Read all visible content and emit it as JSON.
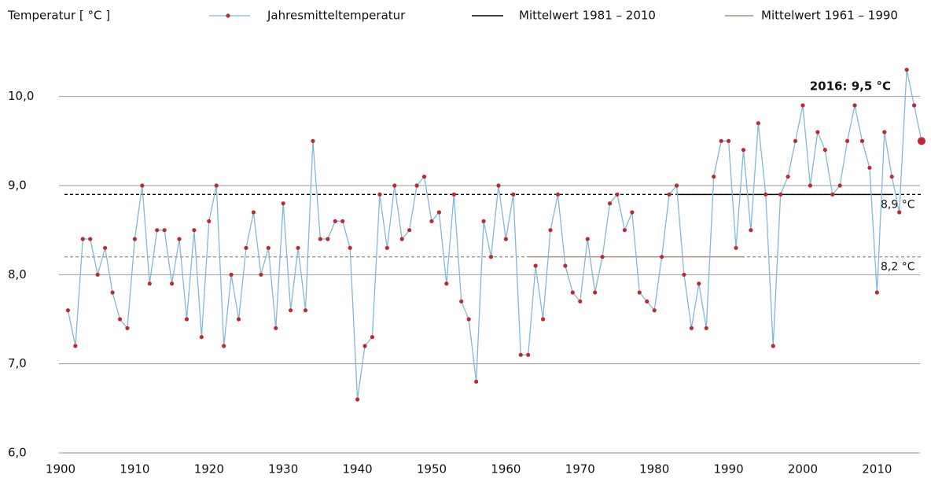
{
  "chart_data": {
    "type": "line",
    "ylabel": "Temperatur [ °C ]",
    "x": [
      1901,
      1902,
      1903,
      1904,
      1905,
      1906,
      1907,
      1908,
      1909,
      1910,
      1911,
      1912,
      1913,
      1914,
      1915,
      1916,
      1917,
      1918,
      1919,
      1920,
      1921,
      1922,
      1923,
      1924,
      1925,
      1926,
      1927,
      1928,
      1929,
      1930,
      1931,
      1932,
      1933,
      1934,
      1935,
      1936,
      1937,
      1938,
      1939,
      1940,
      1941,
      1942,
      1943,
      1944,
      1945,
      1946,
      1947,
      1948,
      1949,
      1950,
      1951,
      1952,
      1953,
      1954,
      1955,
      1956,
      1957,
      1958,
      1959,
      1960,
      1961,
      1962,
      1963,
      1964,
      1965,
      1966,
      1967,
      1968,
      1969,
      1970,
      1971,
      1972,
      1973,
      1974,
      1975,
      1976,
      1977,
      1978,
      1979,
      1980,
      1981,
      1982,
      1983,
      1984,
      1985,
      1986,
      1987,
      1988,
      1989,
      1990,
      1991,
      1992,
      1993,
      1994,
      1995,
      1996,
      1997,
      1998,
      1999,
      2000,
      2001,
      2002,
      2003,
      2004,
      2005,
      2006,
      2007,
      2008,
      2009,
      2010,
      2011,
      2012,
      2013,
      2014,
      2015,
      2016
    ],
    "series": [
      {
        "name": "Jahresmitteltemperatur",
        "color": "#7fb9e0",
        "marker_color": "#c0282d",
        "values": [
          7.6,
          7.2,
          8.4,
          8.4,
          8.0,
          8.3,
          7.8,
          7.5,
          7.4,
          8.4,
          9.0,
          7.9,
          8.5,
          8.5,
          7.9,
          8.4,
          7.5,
          8.5,
          7.3,
          8.6,
          9.0,
          7.2,
          8.0,
          7.5,
          8.3,
          8.7,
          8.0,
          8.3,
          7.4,
          8.8,
          7.6,
          8.3,
          7.6,
          9.5,
          8.4,
          8.4,
          8.6,
          8.6,
          8.3,
          6.6,
          7.2,
          7.3,
          8.9,
          8.3,
          9.0,
          8.4,
          8.5,
          9.0,
          9.1,
          8.6,
          8.7,
          7.9,
          8.9,
          7.7,
          7.5,
          6.8,
          8.6,
          8.2,
          9.0,
          8.4,
          8.9,
          7.1,
          7.1,
          8.1,
          7.5,
          8.5,
          8.9,
          8.1,
          7.8,
          7.7,
          8.4,
          7.8,
          8.2,
          8.8,
          8.9,
          8.5,
          8.7,
          7.8,
          7.7,
          7.6,
          8.2,
          8.9,
          9.0,
          8.0,
          7.4,
          7.9,
          7.4,
          9.1,
          9.5,
          9.5,
          8.3,
          9.4,
          8.5,
          9.7,
          8.9,
          7.2,
          8.9,
          9.1,
          9.5,
          9.9,
          9.0,
          9.6,
          9.4,
          8.9,
          9.0,
          9.5,
          9.9,
          9.5,
          9.2,
          7.8,
          9.6,
          9.1,
          8.7,
          10.3,
          9.9,
          9.5
        ]
      }
    ],
    "reference_lines": [
      {
        "name": "Mittelwert 1981 – 2010",
        "value": 8.9,
        "value_label": "8,9 °C",
        "color": "#000000",
        "span": [
          1981,
          2010
        ]
      },
      {
        "name": "Mittelwert 1961 – 1990",
        "value": 8.2,
        "value_label": "8,2 °C",
        "color": "#b09080",
        "span": [
          1961,
          1990
        ]
      }
    ],
    "annotation": "2016: 9,5 °C",
    "xlim": [
      1900,
      2016
    ],
    "xticks": [
      1900,
      1910,
      1920,
      1930,
      1940,
      1950,
      1960,
      1970,
      1980,
      1990,
      2000,
      2010
    ],
    "ylim": [
      6,
      10.5
    ],
    "yticks": [
      {
        "value": 6,
        "label": "6,0"
      },
      {
        "value": 7,
        "label": "7,0"
      },
      {
        "value": 8,
        "label": "8,0"
      },
      {
        "value": 9,
        "label": "9,0"
      },
      {
        "value": 10,
        "label": "10,0"
      }
    ],
    "grid": true
  }
}
